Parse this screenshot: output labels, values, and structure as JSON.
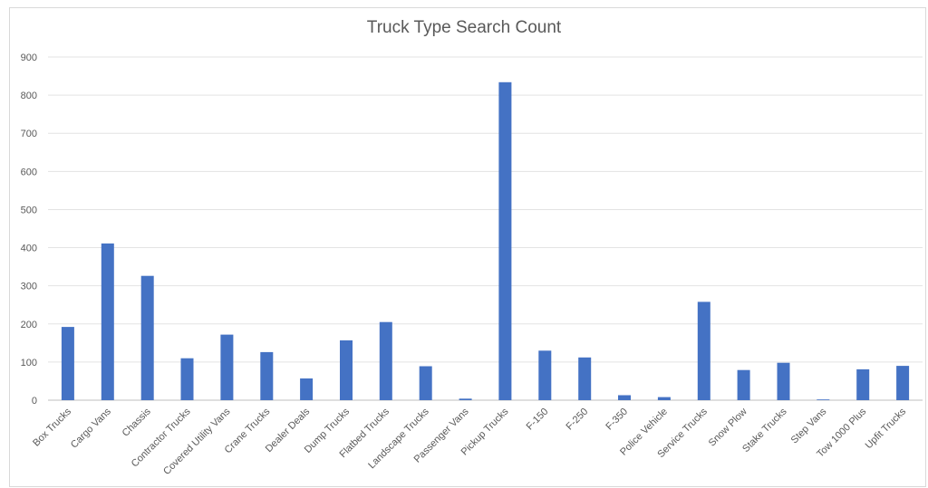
{
  "chart_data": {
    "type": "bar",
    "title": "Truck Type Search Count",
    "xlabel": "",
    "ylabel": "",
    "ylim": [
      0,
      900
    ],
    "yticks": [
      0,
      100,
      200,
      300,
      400,
      500,
      600,
      700,
      800,
      900
    ],
    "grid": true,
    "legend": "none",
    "bar_color": "#4472c4",
    "categories": [
      "Box Trucks",
      "Cargo Vans",
      "Chassis",
      "Contractor Trucks",
      "Covered Utility Vans",
      "Crane Trucks",
      "Dealer Deals",
      "Dump Trucks",
      "Flatbed Trucks",
      "Landscape Trucks",
      "Passenger Vans",
      "Pickup Trucks",
      "F-150",
      "F-250",
      "F-350",
      "Police Vehicle",
      "Service Trucks",
      "Snow Plow",
      "Stake Trucks",
      "Step Vans",
      "Tow 1000 Plus",
      "Upfit Trucks"
    ],
    "values": [
      192,
      411,
      326,
      110,
      172,
      126,
      57,
      157,
      205,
      89,
      4,
      834,
      130,
      112,
      13,
      8,
      258,
      79,
      98,
      2,
      81,
      90
    ]
  }
}
